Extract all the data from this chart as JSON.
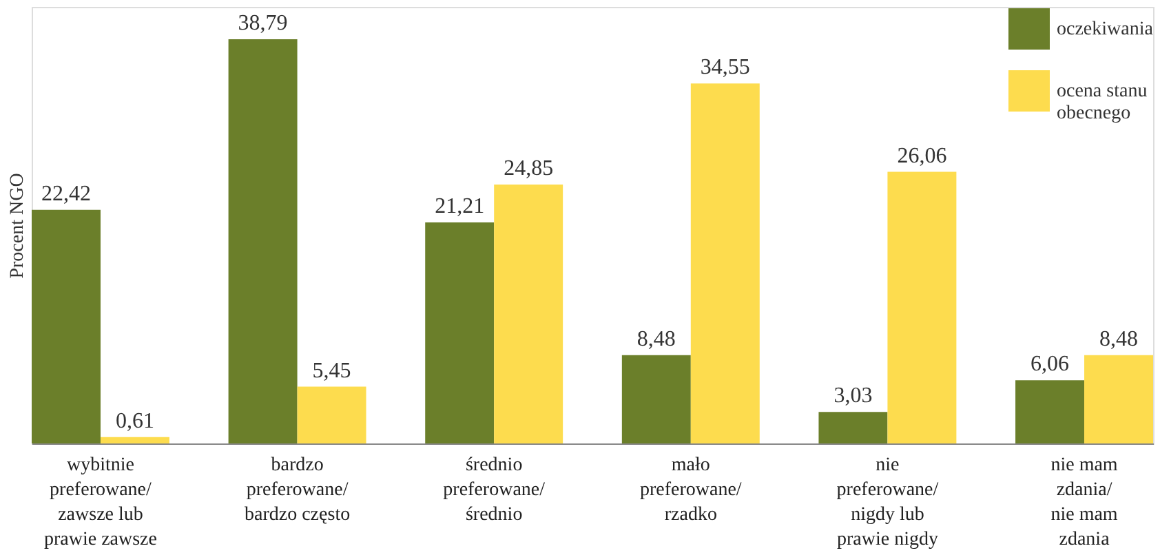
{
  "chart_data": {
    "type": "bar",
    "ylabel": "Procent NGO",
    "categories": [
      "wybitnie\npreferowane/\nzawsze lub\nprawie zawsze",
      "bardzo\npreferowane/\nbardzo często",
      "średnio\npreferowane/\nśrednio",
      "mało\npreferowane/\nrzadko",
      "nie\npreferowane/\nnigdy lub\nprawie nigdy",
      "nie mam\nzdania/\nnie mam\nzdania"
    ],
    "series": [
      {
        "name": "oczekiwania",
        "color": "#6b7f2a",
        "values": [
          22.42,
          38.79,
          21.21,
          8.48,
          3.03,
          6.06
        ],
        "value_labels": [
          "22,42",
          "38,79",
          "21,21",
          "8,48",
          "3,03",
          "6,06"
        ]
      },
      {
        "name": "ocena stanu\nobecnego",
        "color": "#fddc4e",
        "values": [
          0.61,
          5.45,
          24.85,
          34.55,
          26.06,
          8.48
        ],
        "value_labels": [
          "0,61",
          "5,45",
          "24,85",
          "34,55",
          "26,06",
          "8,48"
        ]
      }
    ],
    "legend": "top right",
    "grid": false
  }
}
